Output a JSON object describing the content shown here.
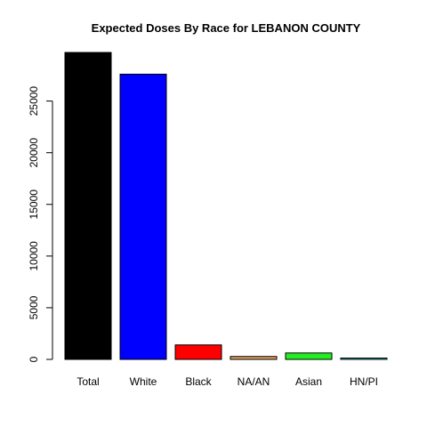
{
  "chart_data": {
    "type": "bar",
    "title": "Expected Doses By Race for LEBANON COUNTY",
    "xlabel": "",
    "ylabel": "",
    "categories": [
      "Total",
      "White",
      "Black",
      "NA/AN",
      "Asian",
      "HN/PI"
    ],
    "values": [
      29700,
      27600,
      1400,
      280,
      620,
      70
    ],
    "colors": [
      "#000000",
      "#0000ff",
      "#ff0000",
      "#e0a060",
      "#22ee22",
      "#22d4d4"
    ],
    "yticks": [
      0,
      5000,
      10000,
      15000,
      20000,
      25000
    ],
    "ytick_labels": [
      "0",
      "5000",
      "10000",
      "15000",
      "20000",
      "25000"
    ],
    "ylim": [
      0,
      29700
    ],
    "grid": false,
    "legend": "none"
  }
}
